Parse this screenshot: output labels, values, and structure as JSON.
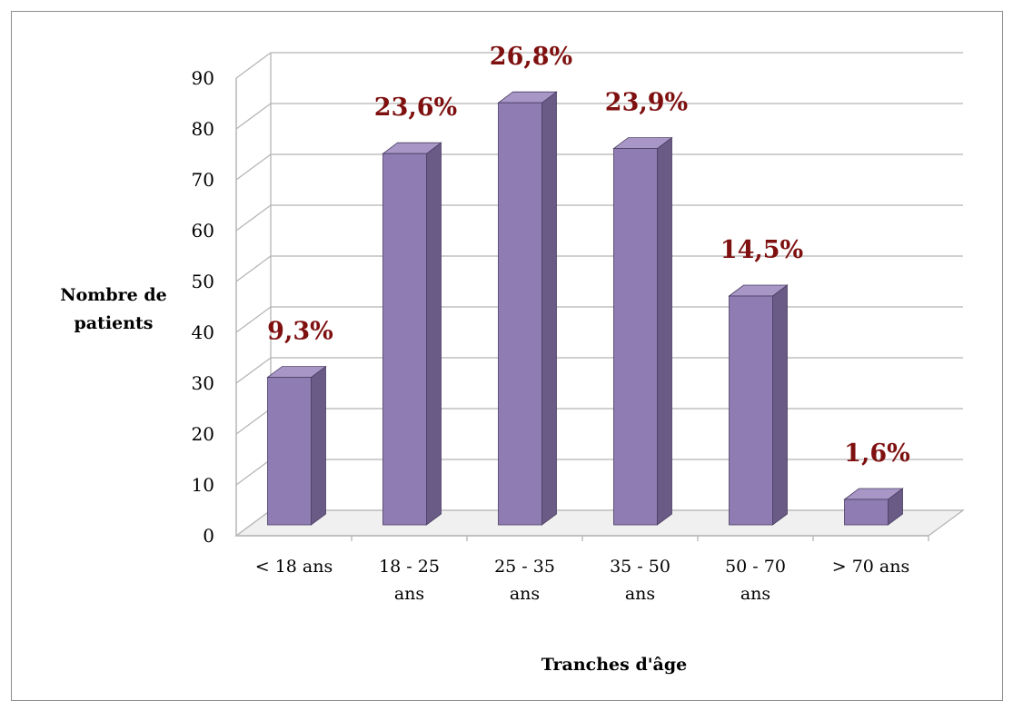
{
  "chart_data": {
    "type": "bar",
    "categories": [
      "< 18 ans",
      "18 - 25 ans",
      "25 - 35 ans",
      "35 - 50 ans",
      "50 - 70 ans",
      "> 70 ans"
    ],
    "category_lines": [
      [
        "< 18 ans"
      ],
      [
        "18 - 25",
        "ans"
      ],
      [
        "25 - 35",
        "ans"
      ],
      [
        "35 - 50",
        "ans"
      ],
      [
        "50 - 70",
        "ans"
      ],
      [
        "> 70 ans"
      ]
    ],
    "values": [
      29,
      73,
      83,
      74,
      45,
      5
    ],
    "data_labels": [
      "9,3%",
      "23,6%",
      "26,8%",
      "23,9%",
      "14,5%",
      "1,6%"
    ],
    "ylabel_lines": [
      "Nombre de",
      "patients"
    ],
    "xlabel": "Tranches d'âge",
    "ylim": [
      0,
      90
    ],
    "yticks": [
      0,
      10,
      20,
      30,
      40,
      50,
      60,
      70,
      80,
      90
    ],
    "grid": true,
    "colors": {
      "bar_front": "#8e7cb2",
      "bar_side": "#6a5a86",
      "bar_top": "#a796c6",
      "label": "#7f1010",
      "grid": "#b5b5b5"
    }
  }
}
